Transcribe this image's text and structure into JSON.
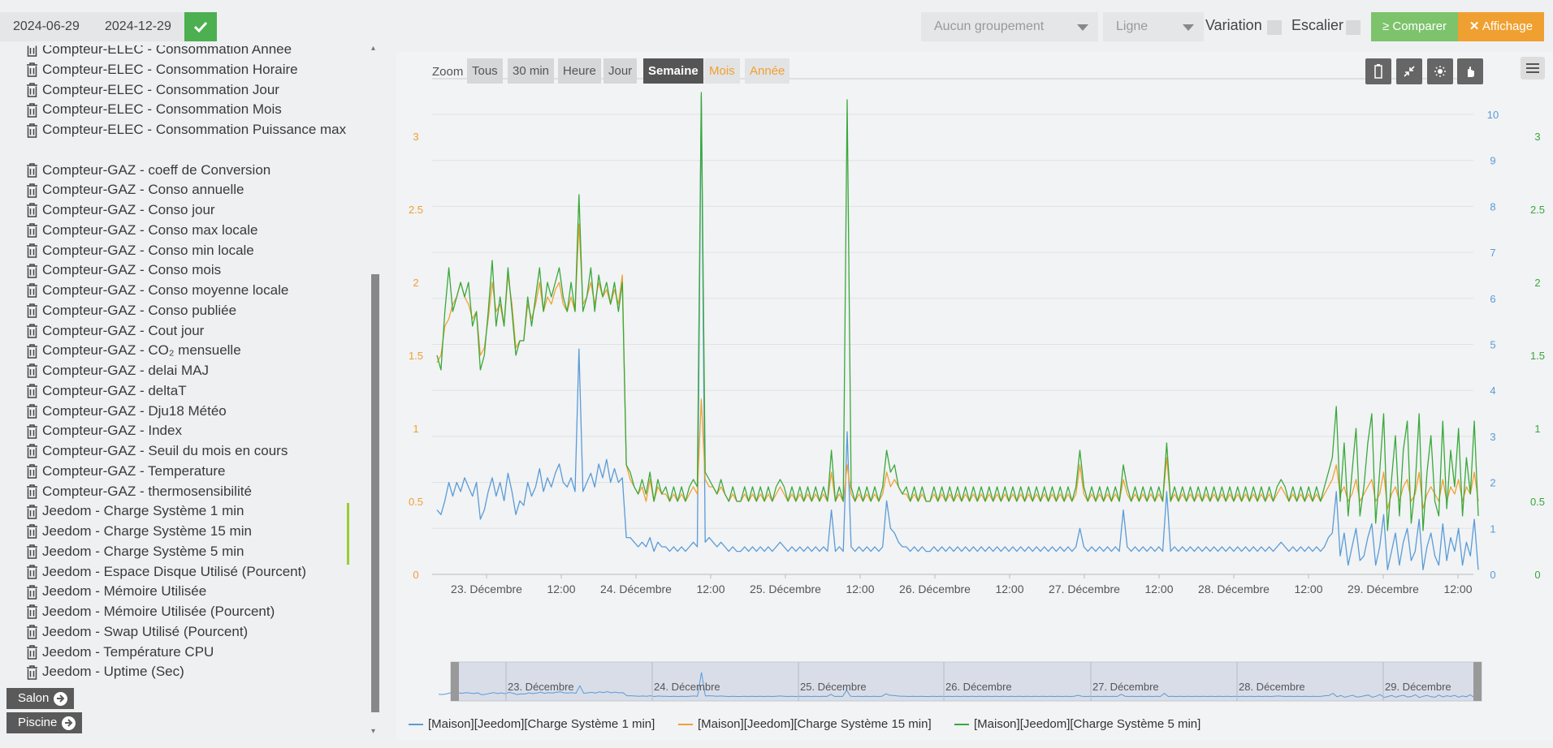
{
  "colors": {
    "series1": "#5b9bd5",
    "series2": "#f0a030",
    "series3": "#3aa83a",
    "compare": "#7dc36c",
    "display": "#f0a030",
    "validate": "#4caf50"
  },
  "toolbar": {
    "date_start": "2024-06-29",
    "date_end": "2024-12-29",
    "grouping": "Aucun groupement",
    "chart_type": "Ligne",
    "variation_label": "Variation",
    "stairs_label": "Escalier",
    "compare_label": "Comparer",
    "display_label": "Affichage"
  },
  "sidebar": {
    "commands": [
      "Compteur-ELEC - Consommation Année",
      "Compteur-ELEC - Consommation Horaire",
      "Compteur-ELEC - Consommation Jour",
      "Compteur-ELEC - Consommation Mois",
      "Compteur-ELEC - Consommation Puissance max",
      "Compteur-GAZ - coeff de Conversion",
      "Compteur-GAZ - Conso annuelle",
      "Compteur-GAZ - Conso jour",
      "Compteur-GAZ - Conso max locale",
      "Compteur-GAZ - Conso min locale",
      "Compteur-GAZ - Conso mois",
      "Compteur-GAZ - Conso moyenne locale",
      "Compteur-GAZ - Conso publiée",
      "Compteur-GAZ - Cout jour",
      "Compteur-GAZ - CO₂ mensuelle",
      "Compteur-GAZ - delai MAJ",
      "Compteur-GAZ - deltaT",
      "Compteur-GAZ - Dju18 Météo",
      "Compteur-GAZ - Index",
      "Compteur-GAZ - Seuil du mois en cours",
      "Compteur-GAZ - Temperature",
      "Compteur-GAZ - thermosensibilité",
      "Jeedom - Charge Système 1 min",
      "Jeedom - Charge Système 15 min",
      "Jeedom - Charge Système 5 min",
      "Jeedom - Espace Disque Utilisé (Pourcent)",
      "Jeedom - Mémoire Utilisée",
      "Jeedom - Mémoire Utilisée (Pourcent)",
      "Jeedom - Swap Utilisé (Pourcent)",
      "Jeedom - Température CPU",
      "Jeedom - Uptime (Sec)"
    ],
    "objects": [
      "Salon",
      "Piscine"
    ]
  },
  "zoom": {
    "label": "Zoom",
    "buttons": [
      "Tous",
      "30 min",
      "Heure",
      "Jour",
      "Semaine",
      "Mois",
      "Année"
    ],
    "active": "Semaine",
    "disabled": [
      "Mois",
      "Année"
    ]
  },
  "chart_data": {
    "type": "line",
    "x_labels": [
      "23. Décembre",
      "12:00",
      "24. Décembre",
      "12:00",
      "25. Décembre",
      "12:00",
      "26. Décembre",
      "12:00",
      "27. Décembre",
      "12:00",
      "28. Décembre",
      "12:00",
      "29. Décembre",
      "12:00"
    ],
    "x_range": [
      "2024-12-22T19:00",
      "2024-12-29T14:00"
    ],
    "axis_left": {
      "ticks": [
        "0",
        "0.5",
        "1",
        "1.5",
        "2",
        "2.5",
        "3"
      ],
      "min": 0,
      "max": 3.4,
      "color": "#f0a030"
    },
    "axis_right_inner": {
      "ticks": [
        "0",
        "1",
        "2",
        "3",
        "4",
        "5",
        "6",
        "7",
        "8",
        "9",
        "10"
      ],
      "min": 0,
      "max": 11,
      "color": "#5b9bd5"
    },
    "axis_right_outer": {
      "ticks": [
        "0",
        "0.5",
        "1",
        "1.5",
        "2",
        "2.5",
        "3"
      ],
      "min": 0,
      "max": 3.4,
      "color": "#3aa83a"
    },
    "navigator_labels": [
      "23. Décembre",
      "24. Décembre",
      "25. Décembre",
      "26. Décembre",
      "27. Décembre",
      "28. Décembre",
      "29. Décembre"
    ],
    "series": [
      {
        "name": "[Maison][Jeedom][Charge Système 1 min]",
        "axis": "inner",
        "color": "#5b9bd5",
        "values": [
          1.4,
          1.3,
          1.6,
          2.0,
          1.7,
          2.0,
          1.8,
          2.1,
          1.9,
          1.7,
          2.0,
          1.2,
          1.4,
          1.8,
          2.1,
          1.7,
          2.0,
          1.6,
          2.2,
          1.8,
          1.3,
          1.6,
          1.5,
          2.0,
          1.7,
          1.9,
          2.3,
          1.8,
          2.1,
          1.9,
          2.2,
          2.4,
          2.0,
          1.9,
          2.1,
          1.8,
          4.9,
          1.8,
          2.0,
          2.2,
          1.9,
          2.4,
          2.1,
          2.5,
          2.0,
          2.3,
          2.0,
          2.1,
          0.8,
          0.8,
          0.7,
          0.6,
          0.7,
          0.6,
          0.8,
          0.5,
          0.7,
          0.6,
          0.6,
          0.5,
          0.6,
          0.5,
          0.6,
          0.5,
          0.6,
          0.7,
          0.6,
          10.4,
          0.7,
          0.8,
          0.7,
          0.6,
          0.7,
          0.6,
          0.5,
          0.6,
          0.5,
          0.5,
          0.6,
          0.5,
          0.6,
          0.5,
          0.6,
          0.5,
          0.6,
          0.5,
          0.6,
          0.7,
          0.6,
          0.5,
          0.6,
          0.5,
          0.6,
          0.5,
          0.6,
          0.5,
          0.6,
          0.5,
          0.6,
          0.5,
          1.4,
          0.5,
          0.6,
          0.5,
          3.1,
          0.6,
          0.5,
          0.6,
          0.5,
          0.6,
          0.5,
          0.6,
          0.5,
          0.6,
          1.6,
          1.0,
          0.9,
          0.7,
          0.6,
          0.6,
          0.5,
          0.6,
          0.5,
          0.6,
          0.5,
          0.5,
          0.6,
          0.5,
          0.6,
          0.5,
          0.6,
          0.5,
          0.6,
          0.5,
          0.6,
          0.5,
          0.6,
          0.5,
          0.6,
          0.5,
          0.6,
          0.5,
          0.6,
          0.5,
          0.6,
          0.5,
          0.6,
          0.5,
          0.6,
          0.5,
          0.6,
          0.5,
          0.6,
          0.5,
          0.6,
          0.5,
          0.6,
          0.5,
          0.6,
          0.5,
          0.6,
          0.5,
          0.6,
          1.0,
          0.6,
          0.5,
          0.6,
          0.5,
          0.6,
          0.5,
          0.6,
          0.5,
          0.6,
          0.5,
          1.4,
          0.6,
          0.5,
          0.6,
          0.5,
          0.6,
          0.5,
          0.6,
          0.5,
          0.6,
          0.5,
          1.8,
          0.5,
          0.6,
          0.5,
          0.6,
          0.5,
          0.6,
          0.5,
          0.6,
          0.5,
          0.6,
          0.5,
          0.6,
          0.5,
          0.6,
          0.5,
          0.6,
          0.5,
          0.6,
          0.5,
          0.6,
          0.5,
          0.6,
          0.5,
          0.6,
          0.5,
          0.6,
          0.5,
          0.6,
          0.7,
          0.6,
          0.5,
          0.6,
          0.5,
          0.6,
          0.5,
          0.6,
          0.5,
          0.6,
          0.5,
          0.6,
          0.8,
          0.9,
          1.8,
          0.4,
          0.9,
          0.2,
          0.6,
          1.0,
          0.3,
          0.4,
          0.8,
          1.1,
          0.2,
          0.6,
          1.3,
          0.1,
          0.5,
          0.9,
          0.2,
          0.7,
          1.0,
          0.3,
          0.5,
          1.2,
          0.1,
          0.6,
          0.9,
          0.4,
          0.2,
          1.1,
          0.3,
          0.8,
          0.5,
          1.0,
          0.2,
          0.7,
          0.4,
          1.2,
          0.1
        ]
      },
      {
        "name": "[Maison][Jeedom][Charge Système 15 min]",
        "axis": "left",
        "color": "#f0a030",
        "values": [
          1.45,
          1.5,
          1.7,
          1.75,
          1.85,
          1.9,
          2.0,
          1.9,
          1.85,
          1.75,
          1.8,
          1.5,
          1.55,
          1.75,
          2.0,
          1.8,
          1.85,
          1.7,
          2.05,
          1.85,
          1.55,
          1.6,
          1.6,
          1.85,
          1.75,
          1.85,
          2.0,
          1.8,
          1.9,
          1.85,
          1.95,
          2.0,
          1.85,
          1.8,
          1.9,
          1.8,
          2.4,
          1.85,
          1.9,
          2.0,
          1.85,
          2.0,
          1.9,
          1.95,
          1.85,
          1.95,
          1.85,
          2.05,
          0.75,
          0.65,
          0.6,
          0.55,
          0.6,
          0.5,
          0.65,
          0.5,
          0.6,
          0.55,
          0.55,
          0.5,
          0.55,
          0.5,
          0.55,
          0.5,
          0.55,
          0.6,
          0.55,
          1.2,
          0.65,
          0.6,
          0.6,
          0.55,
          0.6,
          0.55,
          0.5,
          0.55,
          0.5,
          0.5,
          0.55,
          0.5,
          0.55,
          0.5,
          0.55,
          0.5,
          0.55,
          0.5,
          0.55,
          0.6,
          0.55,
          0.5,
          0.55,
          0.5,
          0.55,
          0.5,
          0.55,
          0.5,
          0.55,
          0.5,
          0.55,
          0.5,
          0.7,
          0.5,
          0.55,
          0.5,
          0.75,
          0.55,
          0.5,
          0.55,
          0.5,
          0.55,
          0.5,
          0.55,
          0.5,
          0.55,
          0.7,
          0.6,
          0.65,
          0.6,
          0.55,
          0.55,
          0.5,
          0.55,
          0.5,
          0.55,
          0.5,
          0.5,
          0.55,
          0.5,
          0.55,
          0.5,
          0.55,
          0.5,
          0.55,
          0.5,
          0.55,
          0.5,
          0.55,
          0.5,
          0.55,
          0.5,
          0.55,
          0.5,
          0.55,
          0.5,
          0.55,
          0.5,
          0.55,
          0.5,
          0.55,
          0.5,
          0.55,
          0.5,
          0.55,
          0.5,
          0.55,
          0.5,
          0.55,
          0.5,
          0.55,
          0.5,
          0.55,
          0.5,
          0.55,
          0.75,
          0.55,
          0.5,
          0.55,
          0.5,
          0.55,
          0.5,
          0.55,
          0.5,
          0.55,
          0.5,
          0.65,
          0.55,
          0.5,
          0.55,
          0.5,
          0.55,
          0.5,
          0.55,
          0.5,
          0.55,
          0.5,
          0.8,
          0.5,
          0.55,
          0.5,
          0.55,
          0.5,
          0.55,
          0.5,
          0.55,
          0.5,
          0.55,
          0.5,
          0.55,
          0.5,
          0.55,
          0.5,
          0.55,
          0.5,
          0.55,
          0.5,
          0.55,
          0.5,
          0.55,
          0.5,
          0.55,
          0.5,
          0.55,
          0.5,
          0.55,
          0.6,
          0.55,
          0.5,
          0.55,
          0.5,
          0.55,
          0.5,
          0.55,
          0.5,
          0.55,
          0.5,
          0.55,
          0.6,
          0.65,
          0.75,
          0.55,
          0.6,
          0.5,
          0.55,
          0.65,
          0.5,
          0.55,
          0.6,
          0.65,
          0.5,
          0.55,
          0.7,
          0.45,
          0.55,
          0.6,
          0.5,
          0.6,
          0.65,
          0.5,
          0.55,
          0.7,
          0.45,
          0.55,
          0.6,
          0.55,
          0.5,
          0.65,
          0.5,
          0.6,
          0.55,
          0.65,
          0.5,
          0.6,
          0.55,
          0.7,
          0.5
        ]
      },
      {
        "name": "[Maison][Jeedom][Charge Système 5 min]",
        "axis": "outer",
        "color": "#3aa83a",
        "values": [
          1.5,
          1.4,
          1.8,
          2.1,
          1.8,
          1.9,
          2.0,
          1.9,
          2.0,
          1.7,
          1.8,
          1.4,
          1.5,
          1.8,
          2.15,
          1.7,
          1.9,
          1.7,
          2.1,
          1.8,
          1.5,
          1.6,
          1.6,
          1.9,
          1.7,
          1.9,
          2.1,
          1.8,
          2.0,
          1.9,
          2.0,
          2.1,
          1.9,
          1.8,
          2.0,
          1.8,
          2.6,
          1.8,
          1.9,
          2.1,
          1.8,
          2.05,
          1.9,
          2.0,
          1.85,
          2.0,
          1.8,
          2.0,
          0.75,
          0.7,
          0.6,
          0.55,
          0.65,
          0.55,
          0.7,
          0.5,
          0.65,
          0.55,
          0.6,
          0.5,
          0.6,
          0.5,
          0.6,
          0.5,
          0.6,
          0.65,
          0.6,
          3.3,
          0.7,
          0.65,
          0.6,
          0.55,
          0.65,
          0.55,
          0.5,
          0.6,
          0.5,
          0.5,
          0.6,
          0.5,
          0.6,
          0.5,
          0.6,
          0.5,
          0.6,
          0.5,
          0.6,
          0.65,
          0.6,
          0.5,
          0.6,
          0.5,
          0.6,
          0.5,
          0.6,
          0.5,
          0.6,
          0.5,
          0.6,
          0.5,
          0.85,
          0.5,
          0.6,
          0.5,
          3.25,
          0.6,
          0.5,
          0.6,
          0.5,
          0.6,
          0.5,
          0.6,
          0.5,
          0.6,
          0.85,
          0.7,
          0.75,
          0.6,
          0.55,
          0.6,
          0.5,
          0.6,
          0.5,
          0.6,
          0.5,
          0.5,
          0.6,
          0.5,
          0.6,
          0.5,
          0.6,
          0.5,
          0.6,
          0.5,
          0.6,
          0.5,
          0.6,
          0.5,
          0.6,
          0.5,
          0.6,
          0.5,
          0.6,
          0.5,
          0.6,
          0.5,
          0.6,
          0.5,
          0.6,
          0.5,
          0.6,
          0.5,
          0.6,
          0.5,
          0.6,
          0.5,
          0.6,
          0.5,
          0.6,
          0.5,
          0.6,
          0.5,
          0.6,
          0.85,
          0.6,
          0.5,
          0.6,
          0.5,
          0.6,
          0.5,
          0.6,
          0.5,
          0.6,
          0.5,
          0.75,
          0.6,
          0.5,
          0.6,
          0.5,
          0.6,
          0.5,
          0.6,
          0.5,
          0.6,
          0.5,
          0.9,
          0.5,
          0.6,
          0.5,
          0.6,
          0.5,
          0.6,
          0.5,
          0.6,
          0.5,
          0.6,
          0.5,
          0.6,
          0.5,
          0.6,
          0.5,
          0.6,
          0.5,
          0.6,
          0.5,
          0.6,
          0.5,
          0.6,
          0.5,
          0.6,
          0.5,
          0.6,
          0.5,
          0.6,
          0.65,
          0.6,
          0.5,
          0.6,
          0.5,
          0.6,
          0.5,
          0.6,
          0.5,
          0.6,
          0.5,
          0.6,
          0.7,
          0.8,
          1.15,
          0.5,
          0.9,
          0.4,
          0.7,
          1.0,
          0.4,
          0.6,
          0.9,
          1.1,
          0.35,
          0.7,
          1.1,
          0.3,
          0.65,
          0.95,
          0.4,
          0.85,
          1.05,
          0.35,
          0.6,
          1.1,
          0.3,
          0.7,
          0.95,
          0.5,
          0.4,
          1.05,
          0.45,
          0.85,
          0.6,
          1.0,
          0.4,
          0.8,
          0.55,
          1.05,
          0.4
        ]
      }
    ]
  }
}
